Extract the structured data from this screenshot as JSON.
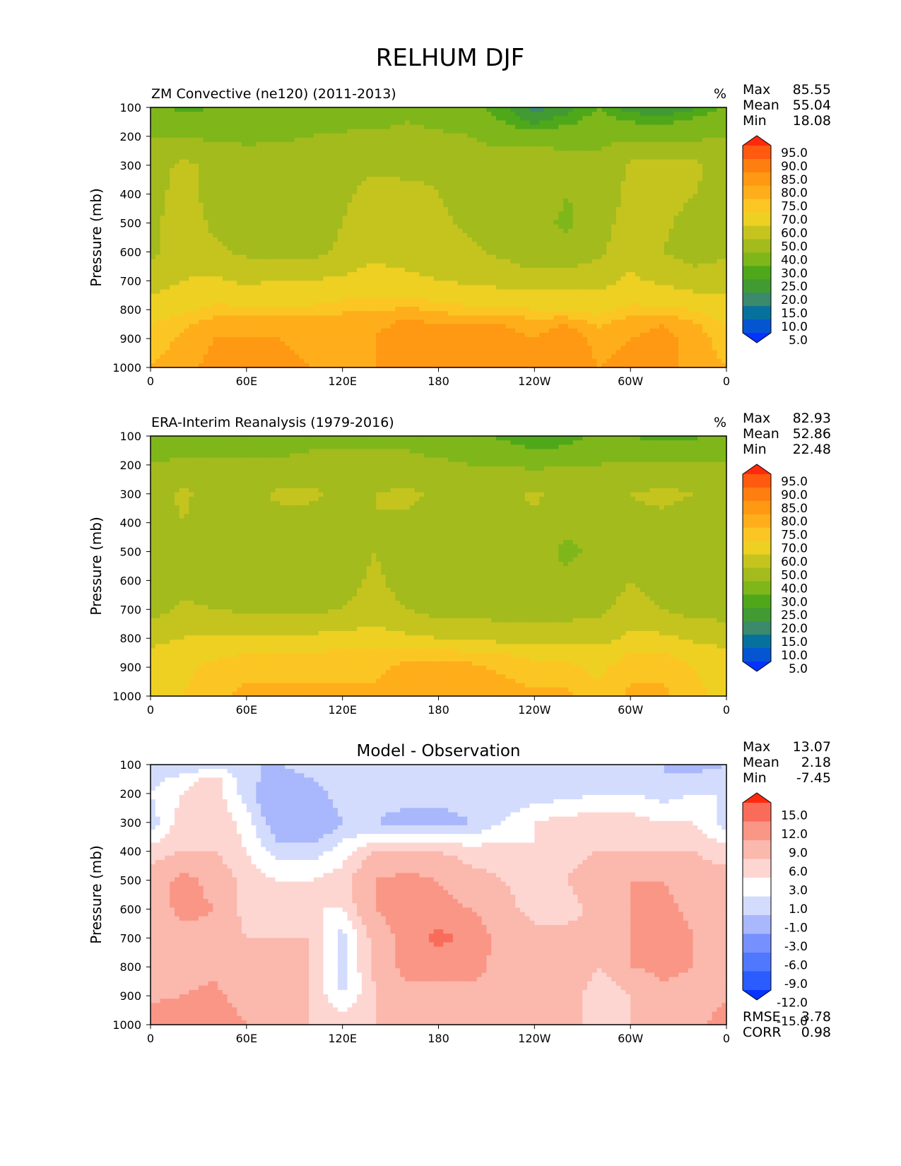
{
  "figure_title": "RELHUM DJF",
  "colors": {
    "abs_levels": [
      "#0433ff",
      "#0555d3",
      "#07719e",
      "#3a8a6b",
      "#419b32",
      "#4ea81a",
      "#7fb71a",
      "#a3bb1c",
      "#c5c41f",
      "#eed022",
      "#fbc623",
      "#ffae1b",
      "#ff9812",
      "#ff7e10",
      "#ff5a0f",
      "#ff2a0d"
    ],
    "diff_levels": [
      "#0433ff",
      "#2a5cff",
      "#5078ff",
      "#7790ff",
      "#a9b7fc",
      "#d3dcfd",
      "#ffffff",
      "#fdd6d2",
      "#fbb8ad",
      "#fa9686",
      "#fa6c5a",
      "#ff2a0d"
    ]
  },
  "chart_data": [
    {
      "id": "model",
      "type": "heatmap",
      "title": "ZM Convective (ne120) (2011-2013)",
      "units": "%",
      "ylabel": "Pressure (mb)",
      "xlabel": "",
      "x_ticks": [
        "0",
        "60E",
        "120E",
        "180",
        "120W",
        "60W",
        "0"
      ],
      "y_ticks": [
        "100",
        "200",
        "300",
        "400",
        "500",
        "600",
        "700",
        "800",
        "900",
        "1000"
      ],
      "ylim": [
        1000,
        100
      ],
      "xlim": [
        0,
        360
      ],
      "stats": [
        {
          "label": "Max",
          "value": "85.55"
        },
        {
          "label": "Mean",
          "value": "55.04"
        },
        {
          "label": "Min",
          "value": "18.08"
        }
      ],
      "colorbar_labels": [
        "95.0",
        "90.0",
        "85.0",
        "80.0",
        "75.0",
        "70.0",
        "60.0",
        "50.0",
        "40.0",
        "30.0",
        "25.0",
        "20.0",
        "15.0",
        "10.0",
        "5.0"
      ],
      "colorbar_extend": "both",
      "field": {
        "x": [
          0,
          20,
          40,
          60,
          80,
          100,
          120,
          140,
          160,
          180,
          200,
          220,
          240,
          260,
          280,
          300,
          320,
          340,
          360
        ],
        "y": [
          100,
          150,
          200,
          300,
          400,
          500,
          600,
          700,
          800,
          850,
          900,
          1000
        ],
        "z": [
          [
            32,
            28,
            30,
            30,
            32,
            30,
            32,
            34,
            36,
            36,
            34,
            26,
            18,
            22,
            30,
            22,
            20,
            24,
            32
          ],
          [
            36,
            34,
            34,
            30,
            30,
            34,
            36,
            38,
            40,
            38,
            34,
            30,
            24,
            28,
            34,
            30,
            28,
            32,
            36
          ],
          [
            40,
            40,
            38,
            38,
            38,
            40,
            42,
            42,
            42,
            42,
            40,
            36,
            34,
            36,
            38,
            38,
            36,
            38,
            40
          ],
          [
            45,
            52,
            48,
            45,
            46,
            46,
            46,
            48,
            46,
            48,
            46,
            46,
            50,
            44,
            42,
            52,
            54,
            52,
            45
          ],
          [
            46,
            54,
            46,
            44,
            44,
            46,
            48,
            54,
            54,
            50,
            46,
            44,
            46,
            40,
            44,
            52,
            54,
            50,
            46
          ],
          [
            47,
            56,
            48,
            46,
            44,
            46,
            50,
            56,
            56,
            52,
            48,
            46,
            44,
            38,
            46,
            54,
            52,
            46,
            47
          ],
          [
            48,
            56,
            52,
            48,
            46,
            46,
            52,
            58,
            56,
            54,
            52,
            48,
            44,
            44,
            48,
            56,
            50,
            46,
            48
          ],
          [
            56,
            60,
            62,
            58,
            60,
            60,
            62,
            64,
            62,
            60,
            58,
            56,
            54,
            54,
            56,
            62,
            58,
            54,
            56
          ],
          [
            64,
            68,
            72,
            72,
            72,
            72,
            74,
            74,
            76,
            74,
            72,
            72,
            70,
            70,
            68,
            72,
            72,
            70,
            64
          ],
          [
            70,
            74,
            78,
            78,
            78,
            78,
            78,
            78,
            82,
            80,
            80,
            80,
            78,
            80,
            74,
            78,
            80,
            76,
            70
          ],
          [
            72,
            76,
            80,
            80,
            80,
            78,
            78,
            80,
            84,
            84,
            84,
            82,
            80,
            84,
            78,
            80,
            82,
            78,
            72
          ],
          [
            75,
            78,
            82,
            82,
            82,
            80,
            80,
            80,
            84,
            84,
            84,
            82,
            82,
            84,
            80,
            82,
            82,
            78,
            75
          ]
        ]
      }
    },
    {
      "id": "obs",
      "type": "heatmap",
      "title": "ERA-Interim Reanalysis (1979-2016)",
      "units": "%",
      "ylabel": "Pressure (mb)",
      "xlabel": "",
      "x_ticks": [
        "0",
        "60E",
        "120E",
        "180",
        "120W",
        "60W",
        "0"
      ],
      "y_ticks": [
        "100",
        "200",
        "300",
        "400",
        "500",
        "600",
        "700",
        "800",
        "900",
        "1000"
      ],
      "ylim": [
        1000,
        100
      ],
      "xlim": [
        0,
        360
      ],
      "stats": [
        {
          "label": "Max",
          "value": "82.93"
        },
        {
          "label": "Mean",
          "value": "52.86"
        },
        {
          "label": "Min",
          "value": "22.48"
        }
      ],
      "colorbar_labels": [
        "95.0",
        "90.0",
        "85.0",
        "80.0",
        "75.0",
        "70.0",
        "60.0",
        "50.0",
        "40.0",
        "30.0",
        "25.0",
        "20.0",
        "15.0",
        "10.0",
        "5.0"
      ],
      "colorbar_extend": "both",
      "field": {
        "x": [
          0,
          20,
          40,
          60,
          80,
          100,
          120,
          140,
          160,
          180,
          200,
          220,
          240,
          260,
          280,
          300,
          320,
          340,
          360
        ],
        "y": [
          100,
          150,
          200,
          300,
          400,
          500,
          600,
          700,
          800,
          850,
          900,
          1000
        ],
        "z": [
          [
            34,
            36,
            36,
            38,
            38,
            38,
            38,
            38,
            38,
            36,
            34,
            28,
            24,
            26,
            32,
            30,
            28,
            28,
            34
          ],
          [
            38,
            38,
            38,
            38,
            38,
            40,
            40,
            40,
            40,
            38,
            36,
            34,
            30,
            32,
            36,
            34,
            34,
            36,
            38
          ],
          [
            40,
            42,
            42,
            42,
            42,
            44,
            44,
            44,
            42,
            42,
            40,
            40,
            38,
            40,
            40,
            42,
            42,
            42,
            40
          ],
          [
            44,
            52,
            46,
            46,
            52,
            52,
            48,
            50,
            52,
            48,
            46,
            46,
            52,
            46,
            42,
            50,
            52,
            50,
            44
          ],
          [
            44,
            50,
            44,
            44,
            46,
            46,
            44,
            50,
            48,
            44,
            44,
            44,
            48,
            42,
            42,
            48,
            48,
            46,
            44
          ],
          [
            44,
            44,
            44,
            44,
            44,
            44,
            44,
            50,
            46,
            44,
            44,
            44,
            44,
            38,
            42,
            46,
            44,
            40,
            44
          ],
          [
            44,
            46,
            44,
            44,
            44,
            44,
            46,
            52,
            46,
            44,
            44,
            44,
            44,
            42,
            44,
            50,
            46,
            44,
            44
          ],
          [
            46,
            52,
            50,
            48,
            48,
            48,
            50,
            54,
            50,
            46,
            46,
            46,
            46,
            46,
            48,
            54,
            50,
            46,
            46
          ],
          [
            56,
            60,
            62,
            62,
            62,
            62,
            64,
            64,
            62,
            60,
            58,
            56,
            56,
            56,
            56,
            62,
            62,
            58,
            56
          ],
          [
            62,
            66,
            68,
            70,
            70,
            70,
            72,
            72,
            74,
            72,
            72,
            70,
            68,
            66,
            64,
            70,
            70,
            66,
            62
          ],
          [
            66,
            68,
            72,
            74,
            74,
            74,
            74,
            74,
            76,
            76,
            76,
            74,
            72,
            72,
            68,
            74,
            74,
            70,
            66
          ],
          [
            68,
            70,
            74,
            76,
            76,
            76,
            76,
            76,
            78,
            78,
            78,
            78,
            76,
            76,
            72,
            76,
            76,
            72,
            68
          ]
        ]
      }
    },
    {
      "id": "diff",
      "type": "heatmap",
      "title": "Model - Observation",
      "units": "",
      "ylabel": "Pressure (mb)",
      "xlabel": "",
      "x_ticks": [
        "0",
        "60E",
        "120E",
        "180",
        "120W",
        "60W",
        "0"
      ],
      "y_ticks": [
        "100",
        "200",
        "300",
        "400",
        "500",
        "600",
        "700",
        "800",
        "900",
        "1000"
      ],
      "ylim": [
        1000,
        100
      ],
      "xlim": [
        0,
        360
      ],
      "stats": [
        {
          "label": "Max",
          "value": "13.07"
        },
        {
          "label": "Mean",
          "value": "2.18"
        },
        {
          "label": "Min",
          "value": "-7.45"
        }
      ],
      "extra_stats": [
        {
          "label": "RMSE",
          "value": "3.78"
        },
        {
          "label": "CORR",
          "value": "0.98"
        }
      ],
      "colorbar_labels": [
        "15.0",
        "12.0",
        "9.0",
        "6.0",
        "3.0",
        "1.0",
        "-1.0",
        "-3.0",
        "-6.0",
        "-9.0",
        "-12.0",
        "-15.0"
      ],
      "colorbar_extend": "both",
      "field": {
        "x": [
          0,
          20,
          40,
          60,
          80,
          100,
          120,
          140,
          160,
          180,
          200,
          220,
          240,
          260,
          280,
          300,
          320,
          340,
          360
        ],
        "y": [
          100,
          150,
          200,
          300,
          400,
          500,
          600,
          700,
          800,
          850,
          900,
          1000
        ],
        "z": [
          [
            -3,
            -3,
            -2,
            -3,
            -3,
            -2,
            -2,
            -2,
            -2,
            -2,
            -1,
            -3,
            -3,
            -3,
            -2,
            -3,
            -3,
            -4,
            -3
          ],
          [
            -2,
            0,
            2,
            -2,
            -4,
            -3,
            -2,
            -2,
            -2,
            -2,
            -2,
            -2,
            -3,
            -2,
            -1,
            -2,
            -3,
            -2,
            -2
          ],
          [
            -1,
            1,
            2,
            -2,
            -6,
            -4,
            -2,
            -2,
            -2,
            -2,
            -2,
            -3,
            -2,
            -2,
            -1,
            -1,
            -2,
            -1,
            -1
          ],
          [
            -2,
            2,
            3,
            0,
            -5,
            -6,
            -3,
            -3,
            -4,
            -4,
            -3,
            -1,
            1,
            2,
            2,
            2,
            1,
            1,
            -2
          ],
          [
            2,
            3,
            3,
            1,
            -2,
            -2,
            0,
            3,
            3,
            3,
            2,
            2,
            1,
            2,
            3,
            3,
            3,
            3,
            2
          ],
          [
            4,
            7,
            5,
            2,
            1,
            1,
            2,
            6,
            7,
            6,
            4,
            3,
            2,
            3,
            5,
            6,
            6,
            4,
            4
          ],
          [
            4,
            7,
            6,
            2,
            2,
            1,
            1,
            6,
            8,
            7,
            6,
            4,
            2,
            2,
            4,
            6,
            7,
            5,
            4
          ],
          [
            3,
            5,
            5,
            3,
            3,
            3,
            -2,
            4,
            7,
            10,
            8,
            5,
            4,
            4,
            3,
            6,
            8,
            6,
            3
          ],
          [
            3,
            5,
            5,
            3,
            3,
            3,
            -2,
            4,
            7,
            7,
            7,
            5,
            6,
            6,
            3,
            6,
            7,
            6,
            3
          ],
          [
            3,
            5,
            6,
            3,
            3,
            3,
            -2,
            3,
            6,
            6,
            6,
            5,
            5,
            6,
            2,
            4,
            6,
            5,
            3
          ],
          [
            5,
            6,
            7,
            4,
            3,
            3,
            -1,
            3,
            5,
            5,
            5,
            4,
            4,
            5,
            1,
            3,
            4,
            4,
            5
          ],
          [
            9,
            9,
            9,
            6,
            4,
            3,
            2,
            3,
            4,
            4,
            3,
            3,
            3,
            4,
            2,
            3,
            3,
            4,
            9
          ]
        ]
      }
    }
  ]
}
